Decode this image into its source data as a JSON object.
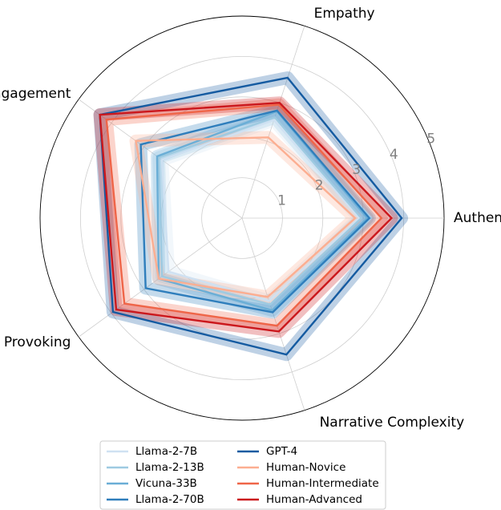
{
  "chart_data": {
    "type": "radar",
    "axes": [
      "Authenticity",
      "Empathy",
      "Engagement",
      "Emotion Provoking",
      "Narrative Complexity"
    ],
    "rlim": [
      0,
      5
    ],
    "rticks": [
      1,
      2,
      3,
      4,
      5
    ],
    "rtick_labels": [
      "1",
      "2",
      "3",
      "4",
      "5"
    ],
    "grid": true,
    "legend_position": "bottom-center",
    "series": [
      {
        "name": "Llama-2-7B",
        "color": "#cfe1f2",
        "values": [
          2.9,
          2.55,
          2.45,
          2.25,
          2.15
        ]
      },
      {
        "name": "Llama-2-13B",
        "color": "#9ecae1",
        "values": [
          2.95,
          2.62,
          2.55,
          2.45,
          2.25
        ]
      },
      {
        "name": "Vicuna-33B",
        "color": "#6aaed6",
        "values": [
          3.1,
          2.78,
          2.6,
          2.55,
          2.4
        ]
      },
      {
        "name": "Llama-2-70B",
        "color": "#2f7ebc",
        "values": [
          3.15,
          2.8,
          3.1,
          2.95,
          2.45
        ]
      },
      {
        "name": "GPT-4",
        "color": "#155ba1",
        "values": [
          3.95,
          3.65,
          4.35,
          3.95,
          3.55
        ]
      },
      {
        "name": "Human-Novice",
        "color": "#fcae91",
        "values": [
          2.8,
          2.1,
          3.25,
          2.55,
          2.05
        ]
      },
      {
        "name": "Human-Intermediate",
        "color": "#ef6548",
        "values": [
          3.45,
          2.95,
          4.15,
          3.6,
          2.8
        ]
      },
      {
        "name": "Human-Advanced",
        "color": "#cb181d",
        "values": [
          3.7,
          3.0,
          4.35,
          3.85,
          2.95
        ]
      }
    ]
  }
}
